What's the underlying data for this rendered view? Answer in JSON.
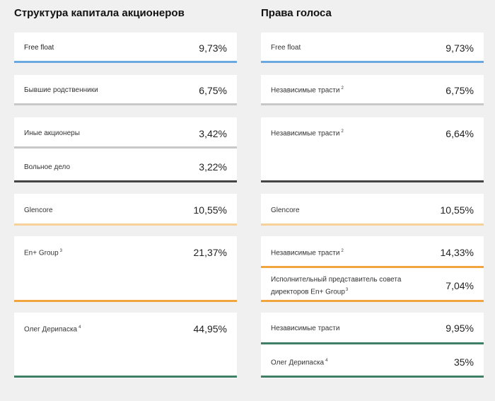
{
  "left": {
    "title": "Структура капитала акционеров",
    "rows": [
      {
        "label": "Free float",
        "sup": "",
        "value": "9,73%"
      },
      {
        "label": "Бывшие родственники",
        "sup": "",
        "value": "6,75%"
      },
      {
        "label": "Иные акционеры",
        "sup": "",
        "value": "3,42%"
      },
      {
        "label": "Вольное дело",
        "sup": "",
        "value": "3,22%"
      },
      {
        "label": "Glencore",
        "sup": "",
        "value": "10,55%"
      },
      {
        "label": "En+ Group",
        "sup": "3",
        "value": "21,37%"
      },
      {
        "label": "Олег Дерипаска",
        "sup": "4",
        "value": "44,95%"
      }
    ]
  },
  "right": {
    "title": "Права голоса",
    "rows": [
      {
        "label": "Free float",
        "sup": "",
        "value": "9,73%"
      },
      {
        "label": "Независимые трасти",
        "sup": "2",
        "value": "6,75%"
      },
      {
        "label": "Независимые трасти",
        "sup": "2",
        "value": "6,64%"
      },
      {
        "label": "Glencore",
        "sup": "",
        "value": "10,55%"
      },
      {
        "label": "Независимые трасти",
        "sup": "2",
        "value": "14,33%"
      },
      {
        "label_line1": "Исполнительный представитель совета",
        "label_line2": "директоров En+ Group",
        "sup": "3",
        "value": "7,04%"
      },
      {
        "label": "Независимые трасти",
        "sup": "",
        "value": "9,95%"
      },
      {
        "label": "Олег Дерипаска",
        "sup": "4",
        "value": "35%"
      }
    ]
  },
  "colors": {
    "background": "#f0f0f0",
    "blue": "#6aa9df",
    "gray": "#c8c8c8",
    "dark": "#444444",
    "peach": "#f6d29a",
    "orange": "#f2a53c",
    "green": "#3f7f66"
  }
}
